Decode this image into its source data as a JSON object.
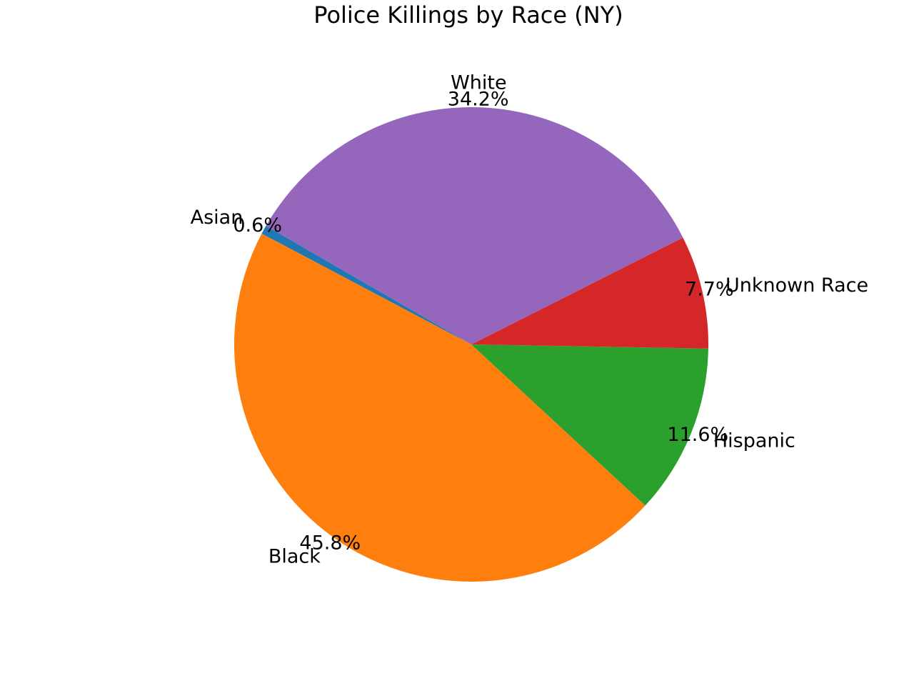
{
  "chart_data": {
    "type": "pie",
    "title": "Police Killings by Race (NY)",
    "start_angle_deg": 150,
    "direction": "counterclockwise",
    "slices": [
      {
        "label": "Asian",
        "value": 0.6,
        "pct_text": "0.6%",
        "color": "#1f77b4"
      },
      {
        "label": "Black",
        "value": 45.8,
        "pct_text": "45.8%",
        "color": "#ff7f0e"
      },
      {
        "label": "Hispanic",
        "value": 11.6,
        "pct_text": "11.6%",
        "color": "#2ca02c"
      },
      {
        "label": "Unknown Race",
        "value": 7.7,
        "pct_text": "7.7%",
        "color": "#d62728"
      },
      {
        "label": "White",
        "value": 34.2,
        "pct_text": "34.2%",
        "color": "#9467bd"
      }
    ]
  }
}
